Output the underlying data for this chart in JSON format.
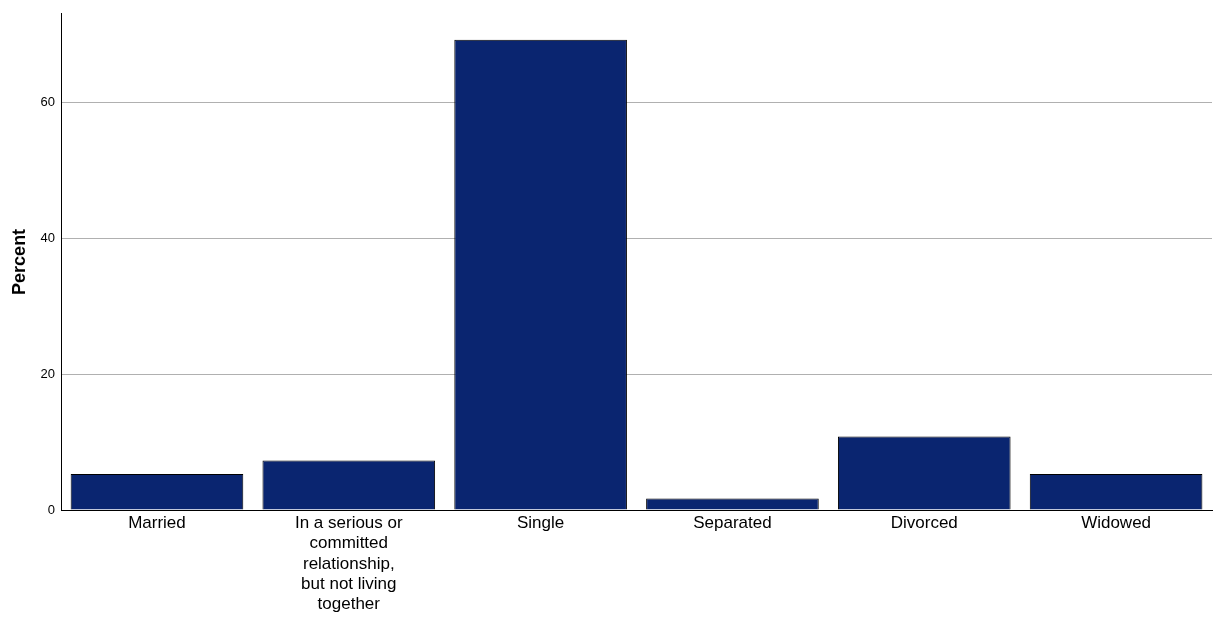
{
  "chart_data": {
    "type": "bar",
    "ylabel": "Percent",
    "categories": [
      "Married",
      "In a serious or committed relationship, but not living together",
      "Single",
      "Separated",
      "Divorced",
      "Widowed"
    ],
    "values": [
      5.3,
      7.3,
      69.2,
      1.7,
      10.8,
      5.3
    ],
    "color": "#0a2570",
    "ylim": [
      0,
      73
    ],
    "yticks": [
      0,
      20,
      40,
      60
    ],
    "grid": "y",
    "legend": false
  }
}
